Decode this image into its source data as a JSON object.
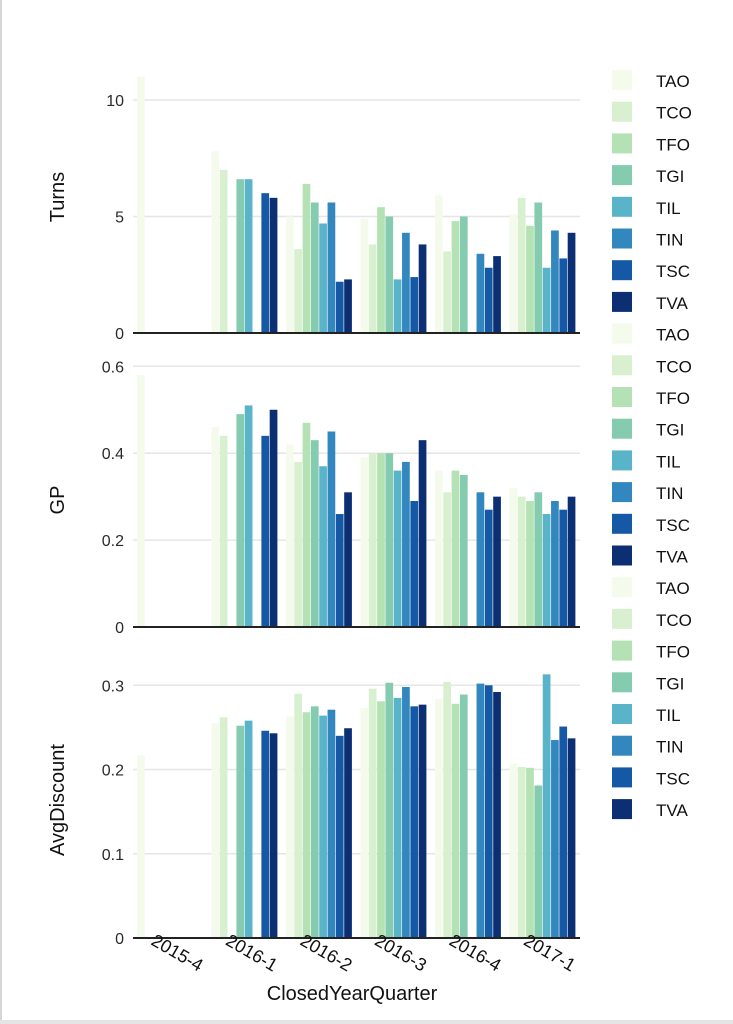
{
  "chart_data": [
    {
      "type": "bar",
      "ylabel": "Turns",
      "ylim": [
        0,
        11.2
      ],
      "yticks": [
        0,
        5,
        10
      ],
      "categories": [
        "2015-4",
        "2016-1",
        "2016-2",
        "2016-3",
        "2016-4",
        "2017-1"
      ],
      "series": [
        {
          "name": "TAO",
          "values": [
            11.0,
            7.8,
            5.0,
            4.9,
            5.9,
            5.1
          ]
        },
        {
          "name": "TCO",
          "values": [
            0,
            7.0,
            3.6,
            3.8,
            3.5,
            5.8
          ]
        },
        {
          "name": "TFO",
          "values": [
            0,
            0,
            6.4,
            5.4,
            4.8,
            4.6
          ]
        },
        {
          "name": "TGI",
          "values": [
            0,
            6.6,
            5.6,
            5.0,
            5.0,
            5.6
          ]
        },
        {
          "name": "TIL",
          "values": [
            0,
            6.6,
            4.7,
            2.3,
            0,
            2.8
          ]
        },
        {
          "name": "TIN",
          "values": [
            0,
            0,
            5.6,
            4.3,
            3.4,
            4.4
          ]
        },
        {
          "name": "TSC",
          "values": [
            0,
            6.0,
            2.2,
            2.4,
            2.8,
            3.2
          ]
        },
        {
          "name": "TVA",
          "values": [
            0,
            5.8,
            2.3,
            3.8,
            3.3,
            4.3
          ]
        }
      ]
    },
    {
      "type": "bar",
      "ylabel": "GP",
      "ylim": [
        0,
        0.58
      ],
      "yticks": [
        0,
        0.2,
        0.4,
        0.6
      ],
      "categories": [
        "2015-4",
        "2016-1",
        "2016-2",
        "2016-3",
        "2016-4",
        "2017-1"
      ],
      "series": [
        {
          "name": "TAO",
          "values": [
            0.58,
            0.46,
            0.42,
            0.39,
            0.36,
            0.32
          ]
        },
        {
          "name": "TCO",
          "values": [
            0,
            0.44,
            0.38,
            0.4,
            0.31,
            0.3
          ]
        },
        {
          "name": "TFO",
          "values": [
            0,
            0,
            0.47,
            0.4,
            0.36,
            0.29
          ]
        },
        {
          "name": "TGI",
          "values": [
            0,
            0.49,
            0.43,
            0.4,
            0.35,
            0.31
          ]
        },
        {
          "name": "TIL",
          "values": [
            0,
            0.51,
            0.37,
            0.36,
            0,
            0.26
          ]
        },
        {
          "name": "TIN",
          "values": [
            0,
            0,
            0.45,
            0.38,
            0.31,
            0.29
          ]
        },
        {
          "name": "TSC",
          "values": [
            0,
            0.44,
            0.26,
            0.29,
            0.27,
            0.27
          ]
        },
        {
          "name": "TVA",
          "values": [
            0,
            0.5,
            0.31,
            0.43,
            0.3,
            0.3
          ]
        }
      ]
    },
    {
      "type": "bar",
      "ylabel": "AvgDiscount",
      "xlabel": "ClosedYearQuarter",
      "ylim": [
        0,
        0.33
      ],
      "yticks": [
        0,
        0.1,
        0.2,
        0.3
      ],
      "categories": [
        "2015-4",
        "2016-1",
        "2016-2",
        "2016-3",
        "2016-4",
        "2017-1"
      ],
      "series": [
        {
          "name": "TAO",
          "values": [
            0.217,
            0.255,
            0.263,
            0.273,
            0.284,
            0.207
          ]
        },
        {
          "name": "TCO",
          "values": [
            0,
            0.262,
            0.29,
            0.296,
            0.304,
            0.203
          ]
        },
        {
          "name": "TFO",
          "values": [
            0,
            0,
            0.268,
            0.281,
            0.278,
            0.202
          ]
        },
        {
          "name": "TGI",
          "values": [
            0,
            0.252,
            0.275,
            0.303,
            0.289,
            0.181
          ]
        },
        {
          "name": "TIL",
          "values": [
            0,
            0.258,
            0.264,
            0.285,
            0,
            0.313
          ]
        },
        {
          "name": "TIN",
          "values": [
            0,
            0,
            0.271,
            0.298,
            0.302,
            0.235
          ]
        },
        {
          "name": "TSC",
          "values": [
            0,
            0.246,
            0.24,
            0.275,
            0.3,
            0.251
          ]
        },
        {
          "name": "TVA",
          "values": [
            0,
            0.243,
            0.249,
            0.277,
            0.292,
            0.237
          ]
        }
      ]
    }
  ],
  "legend": [
    "TAO",
    "TCO",
    "TFO",
    "TGI",
    "TIL",
    "TIN",
    "TSC",
    "TVA",
    "TAO",
    "TCO",
    "TFO",
    "TGI",
    "TIL",
    "TIN",
    "TSC",
    "TVA",
    "TAO",
    "TCO",
    "TFO",
    "TGI",
    "TIL",
    "TIN",
    "TSC",
    "TVA"
  ],
  "colors": [
    "#f4fbec",
    "#d8f0cf",
    "#b4e2b4",
    "#84cbaf",
    "#5ab4c9",
    "#3387bf",
    "#1559a6",
    "#0b2f72"
  ],
  "legend_placement": "right",
  "grid": true
}
